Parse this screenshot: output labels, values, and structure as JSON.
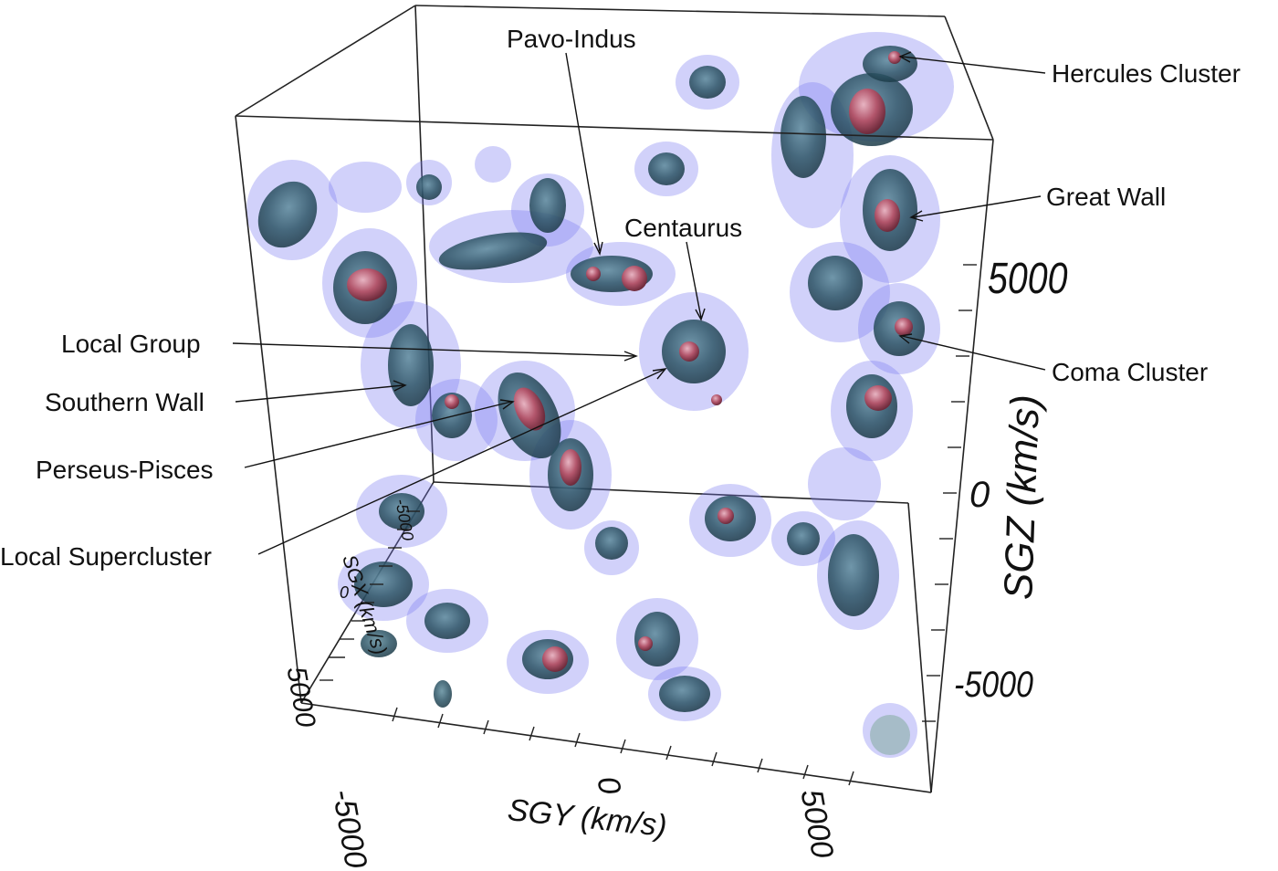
{
  "labels": {
    "pavo_indus": "Pavo-Indus",
    "hercules": "Hercules Cluster",
    "great_wall": "Great Wall",
    "centaurus": "Centaurus",
    "local_group": "Local Group",
    "coma": "Coma Cluster",
    "southern_wall": "Southern Wall",
    "perseus_pisces": "Perseus-Pisces",
    "local_supercluster": "Local Supercluster"
  },
  "axes": {
    "sgz": {
      "title": "SGZ (km/s)",
      "ticks": [
        "5000",
        "0",
        "-5000"
      ]
    },
    "sgy": {
      "title": "SGY (km/s)",
      "ticks": [
        "-5000",
        "0",
        "5000"
      ]
    },
    "sgx": {
      "title": "SGX (km/s)",
      "ticks": [
        "-5000",
        "0",
        "5000"
      ]
    }
  },
  "colors": {
    "blob_outer": "#7b7bf0",
    "blob_mid": "#3f6277",
    "blob_core": "#1f4452",
    "cluster": "#b3566c"
  }
}
